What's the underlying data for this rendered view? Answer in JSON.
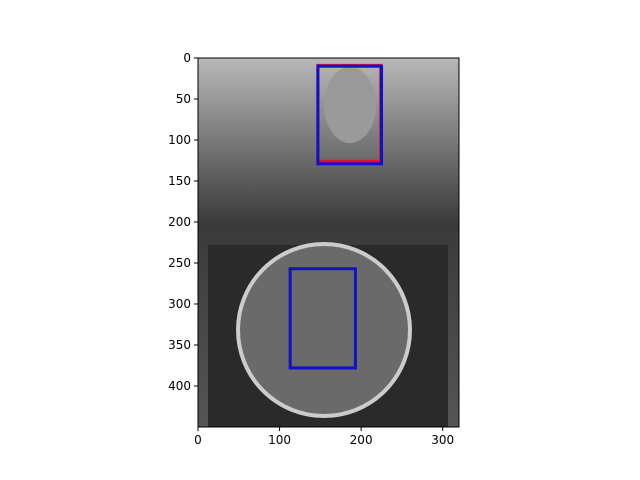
{
  "chart_data": {
    "type": "image",
    "xlim": [
      0,
      320
    ],
    "ylim": [
      450,
      0
    ],
    "xticks": [
      0,
      100,
      200,
      300
    ],
    "yticks": [
      0,
      50,
      100,
      150,
      200,
      250,
      300,
      350,
      400
    ],
    "boxes": [
      {
        "color": "#e0102a",
        "x": [
          147,
          224
        ],
        "y": [
          9,
          126
        ]
      },
      {
        "color": "#1010c8",
        "x": [
          147,
          225
        ],
        "y": [
          10,
          129
        ]
      },
      {
        "color": "#1010c8",
        "x": [
          113,
          193
        ],
        "y": [
          257,
          378
        ]
      }
    ]
  }
}
